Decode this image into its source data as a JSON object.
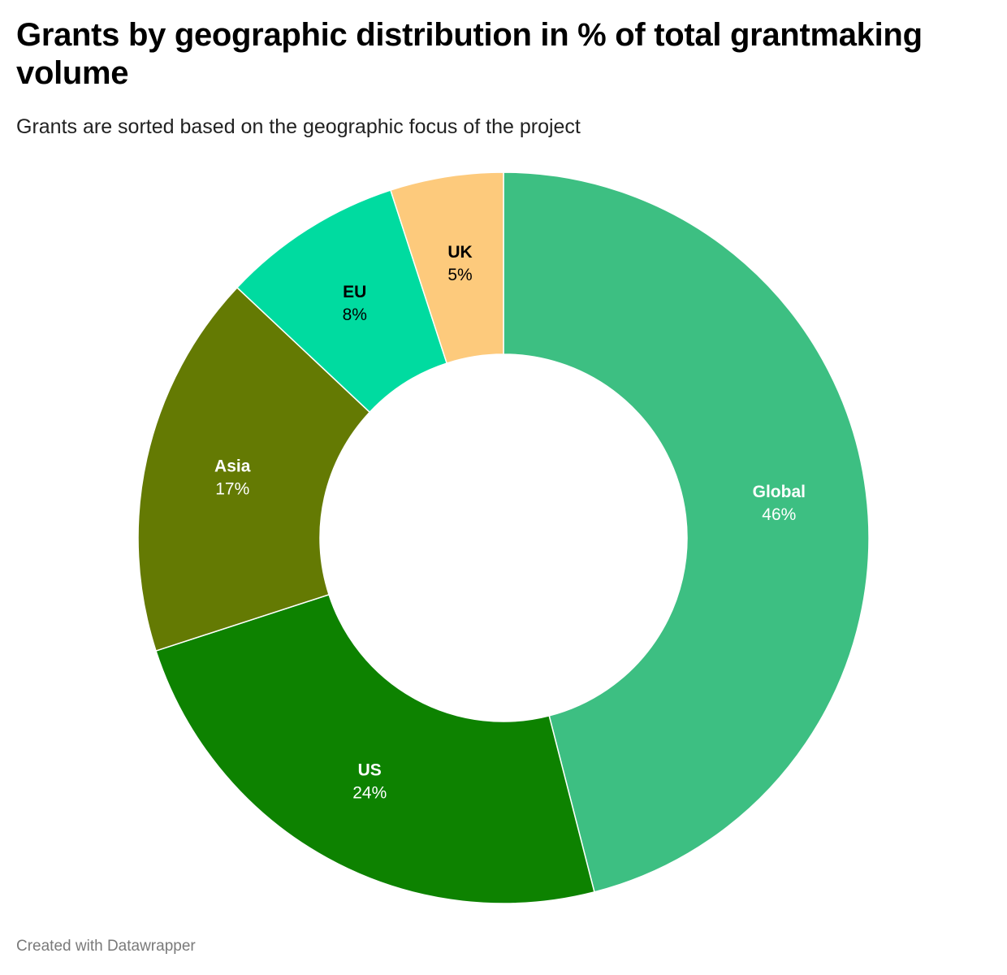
{
  "title": "Grants by geographic distribution in % of total grantmaking volume",
  "subtitle": "Grants are sorted based on the geographic focus of the project",
  "footer": "Created with Datawrapper",
  "chart_data": {
    "type": "pie",
    "variant": "donut",
    "title": "Grants by geographic distribution in % of total grantmaking volume",
    "subtitle": "Grants are sorted based on the geographic focus of the project",
    "unit": "%",
    "slices": [
      {
        "label": "Global",
        "value": 46,
        "display": "46%",
        "color": "#3dbf82",
        "text_color": "#ffffff"
      },
      {
        "label": "US",
        "value": 24,
        "display": "24%",
        "color": "#0d8200",
        "text_color": "#ffffff"
      },
      {
        "label": "Asia",
        "value": 17,
        "display": "17%",
        "color": "#647a03",
        "text_color": "#ffffff"
      },
      {
        "label": "EU",
        "value": 8,
        "display": "8%",
        "color": "#00dba0",
        "text_color": "#000000"
      },
      {
        "label": "UK",
        "value": 5,
        "display": "5%",
        "color": "#fdca7c",
        "text_color": "#000000"
      }
    ],
    "start": "12 o'clock",
    "direction": "clockwise",
    "legend": "none (direct labels)"
  }
}
